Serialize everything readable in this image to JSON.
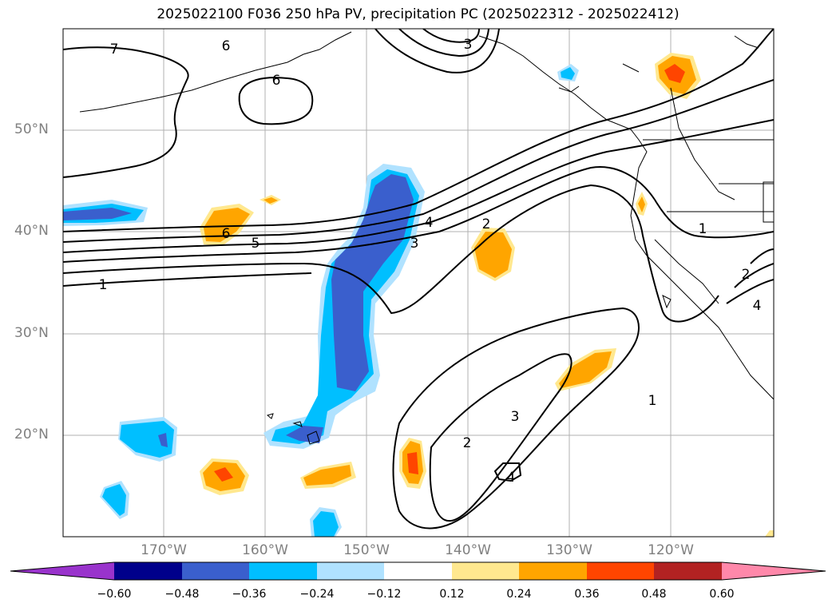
{
  "title": "2025022100 F036 250 hPa PV, precipitation PC (2025022312 - 2025022412)",
  "lat_labels": [
    "50°N",
    "40°N",
    "30°N",
    "20°N"
  ],
  "lon_labels": [
    "170°W",
    "160°W",
    "150°W",
    "140°W",
    "130°W",
    "120°W"
  ],
  "contour_labels": [
    "7",
    "6",
    "6",
    "3",
    "6",
    "5",
    "4",
    "3",
    "2",
    "1",
    "1",
    "2",
    "4",
    "1",
    "2",
    "3",
    "4"
  ],
  "colorbar": {
    "ticks": [
      "−0.60",
      "−0.48",
      "−0.36",
      "−0.24",
      "−0.12",
      "0.12",
      "0.24",
      "0.36",
      "0.48",
      "0.60"
    ],
    "colors": [
      "#9933cc",
      "#00008b",
      "#3a5fcd",
      "#00bfff",
      "#b0e2ff",
      "#ffffff",
      "#ffe88f",
      "#ffa500",
      "#ff4500",
      "#b22222",
      "#ff88aa"
    ]
  }
}
